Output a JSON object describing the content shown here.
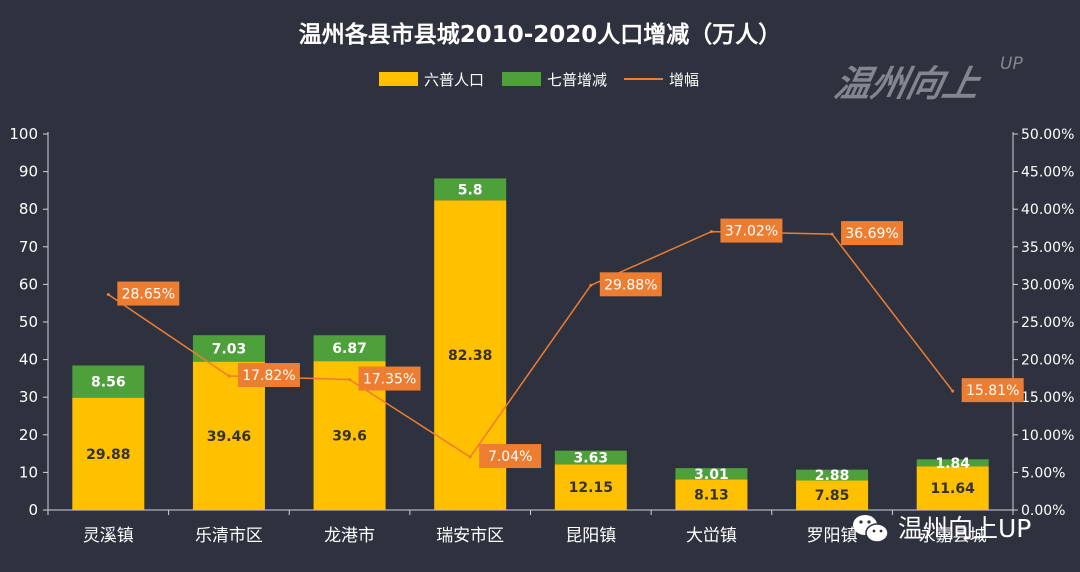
{
  "watermark": {
    "top": "温州向上",
    "top_sup": "UP",
    "bottom": "温州向上UP"
  },
  "colors": {
    "background": "#2e323f",
    "bar_base": "#ffc000",
    "bar_increase": "#4ea03a",
    "line": "#ed7d31",
    "label_box": "#ed7d31",
    "text": "#ffffff",
    "bar_label": "#333333"
  },
  "chart_data": {
    "type": "bar",
    "stacked": true,
    "title": "温州各县市县城2010-2020人口增减（万人）",
    "categories": [
      "灵溪镇",
      "乐清市区",
      "龙港市",
      "瑞安市区",
      "昆阳镇",
      "大峃镇",
      "罗阳镇",
      "永嘉县城"
    ],
    "series": [
      {
        "name": "六普人口",
        "kind": "bar",
        "axis": "left",
        "values": [
          29.88,
          39.46,
          39.6,
          82.38,
          12.15,
          8.13,
          7.85,
          11.64
        ],
        "labels": [
          "29.88",
          "39.46",
          "39.6",
          "82.38",
          "12.15",
          "8.13",
          "7.85",
          "11.64"
        ]
      },
      {
        "name": "七普增减",
        "kind": "bar",
        "axis": "left",
        "values": [
          8.56,
          7.03,
          6.87,
          5.8,
          3.63,
          3.01,
          2.88,
          1.84
        ],
        "labels": [
          "8.56",
          "7.03",
          "6.87",
          "5.8",
          "3.63",
          "3.01",
          "2.88",
          "1.84"
        ]
      },
      {
        "name": "增幅",
        "kind": "line",
        "axis": "right",
        "values": [
          28.65,
          17.82,
          17.35,
          7.04,
          29.88,
          37.02,
          36.69,
          15.81
        ],
        "labels": [
          "28.65%",
          "17.82%",
          "17.35%",
          "7.04%",
          "29.88%",
          "37.02%",
          "36.69%",
          "15.81%"
        ]
      }
    ],
    "y_left": {
      "min": 0,
      "max": 100,
      "ticks": [
        "0",
        "10",
        "20",
        "30",
        "40",
        "50",
        "60",
        "70",
        "80",
        "90",
        "100"
      ]
    },
    "y_right": {
      "min": 0,
      "max": 50,
      "ticks": [
        "0.00%",
        "5.00%",
        "10.00%",
        "15.00%",
        "20.00%",
        "25.00%",
        "30.00%",
        "35.00%",
        "40.00%",
        "45.00%",
        "50.00%"
      ]
    },
    "grid": false,
    "legend_position": "top-center"
  }
}
